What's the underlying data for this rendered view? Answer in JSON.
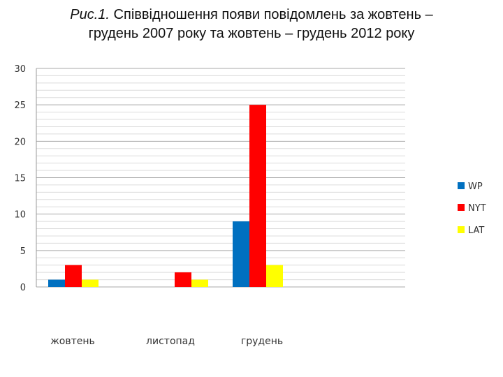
{
  "title": {
    "prefix": "Рис.1.",
    "line1": " Співвідношення появи повідомлень за жовтень –",
    "line2": "грудень 2007 року та жовтень – грудень 2012 року"
  },
  "chart_data": {
    "type": "bar",
    "categories": [
      "жовтень",
      "листопад",
      "грудень"
    ],
    "series": [
      {
        "name": "WP",
        "color": "#0070C0",
        "values": [
          1,
          0,
          9
        ]
      },
      {
        "name": "NYT",
        "color": "#FF0000",
        "values": [
          3,
          2,
          25
        ]
      },
      {
        "name": "LAT",
        "color": "#FFFF00",
        "values": [
          1,
          1,
          3
        ]
      }
    ],
    "ylim": [
      0,
      30
    ],
    "yticks": [
      0,
      5,
      10,
      15,
      20,
      25,
      30
    ],
    "minor_grid_step": 1,
    "grid": true,
    "legend_position": "right"
  }
}
